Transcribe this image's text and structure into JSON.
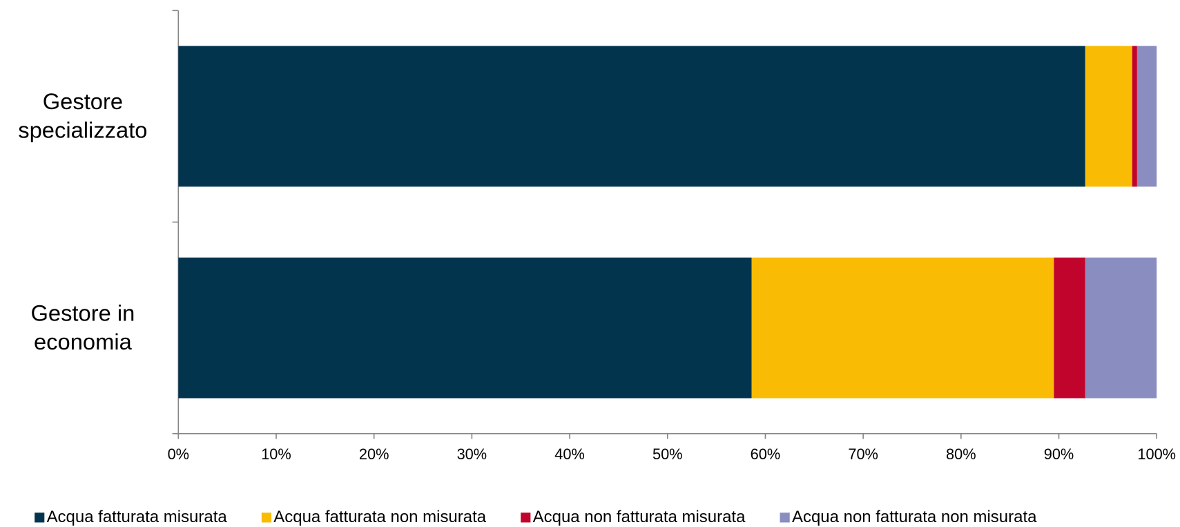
{
  "chart_data": {
    "type": "stacked-horizontal-bar",
    "categories": [
      "Gestore specializzato",
      "Gestore in economia"
    ],
    "series": [
      {
        "name": "Acqua fatturata misurata",
        "color": "#02344d",
        "values": [
          92.7,
          58.6
        ]
      },
      {
        "name": "Acqua fatturata non misurata",
        "color": "#f9bb03",
        "values": [
          4.8,
          30.9
        ]
      },
      {
        "name": "Acqua non fatturata misurata",
        "color": "#c0042c",
        "values": [
          0.5,
          3.2
        ]
      },
      {
        "name": "Acqua non fatturata non misurata",
        "color": "#8a8dbf",
        "values": [
          2.0,
          7.3
        ]
      }
    ],
    "xlim": [
      0,
      100
    ],
    "xticks": [
      {
        "value": 0,
        "label": "0%"
      },
      {
        "value": 10,
        "label": "10%"
      },
      {
        "value": 20,
        "label": "20%"
      },
      {
        "value": 30,
        "label": "30%"
      },
      {
        "value": 40,
        "label": "40%"
      },
      {
        "value": 50,
        "label": "50%"
      },
      {
        "value": 60,
        "label": "60%"
      },
      {
        "value": 70,
        "label": "70%"
      },
      {
        "value": 80,
        "label": "80%"
      },
      {
        "value": 90,
        "label": "90%"
      },
      {
        "value": 100,
        "label": "100%"
      }
    ],
    "grid": false,
    "legend": "bottom"
  }
}
